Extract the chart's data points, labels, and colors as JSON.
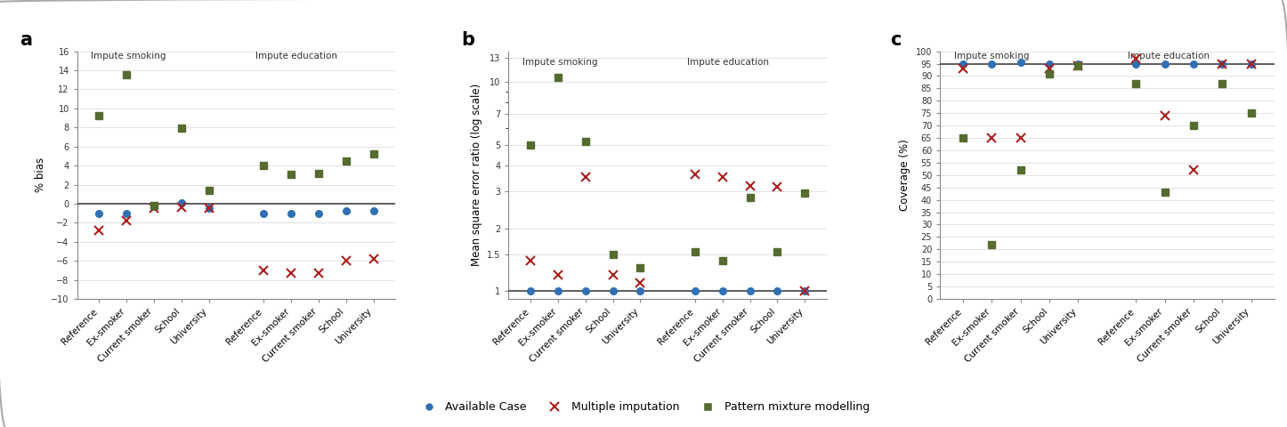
{
  "panel_labels": [
    "a",
    "b",
    "c"
  ],
  "categories": [
    "Reference",
    "Ex-smoker",
    "Current smoker",
    "School",
    "University"
  ],
  "section_labels": [
    "Impute smoking",
    "Impute education"
  ],
  "panel_a": {
    "ylabel": "% bias",
    "ylim": [
      -10,
      16
    ],
    "yticks": [
      -10,
      -8,
      -6,
      -4,
      -2,
      0,
      2,
      4,
      6,
      8,
      10,
      12,
      14,
      16
    ],
    "hline": 0,
    "smoke_AC": [
      -1.0,
      -1.0,
      -0.3,
      0.1,
      -0.5
    ],
    "smoke_MI": [
      -2.8,
      -1.8,
      -0.5,
      -0.4,
      -0.5
    ],
    "smoke_PMM": [
      9.2,
      13.5,
      -0.2,
      7.9,
      1.4
    ],
    "edu_AC": [
      -1.0,
      -1.0,
      -1.0,
      -0.8,
      -0.8
    ],
    "edu_MI": [
      -7.0,
      -7.3,
      -7.3,
      -6.0,
      -5.8
    ],
    "edu_PMM": [
      4.0,
      3.1,
      3.2,
      4.5,
      5.2
    ]
  },
  "panel_b": {
    "ylabel": "Mean square error ratio (log scale)",
    "yticks": [
      1,
      1.5,
      2,
      3,
      4,
      5,
      7,
      10,
      13
    ],
    "hline": 1,
    "smoke_AC": [
      1.0,
      1.0,
      1.0,
      1.0,
      1.0
    ],
    "smoke_MI": [
      1.4,
      1.2,
      3.5,
      1.2,
      1.1
    ],
    "smoke_PMM": [
      5.0,
      10.5,
      5.2,
      1.5,
      1.3
    ],
    "edu_AC": [
      1.0,
      1.0,
      1.0,
      1.0,
      1.0
    ],
    "edu_MI": [
      3.6,
      3.5,
      3.2,
      3.15,
      1.0
    ],
    "edu_PMM": [
      1.55,
      1.4,
      2.8,
      1.55,
      2.95
    ]
  },
  "panel_c": {
    "ylabel": "Coverage (%)",
    "ylim": [
      0,
      100
    ],
    "yticks": [
      0,
      5,
      10,
      15,
      20,
      25,
      30,
      35,
      40,
      45,
      50,
      55,
      60,
      65,
      70,
      75,
      80,
      85,
      90,
      95,
      100
    ],
    "hline": 95,
    "smoke_AC": [
      95.0,
      95.0,
      95.5,
      95.0,
      95.0
    ],
    "smoke_MI": [
      93.0,
      65.0,
      65.0,
      93.0,
      94.0
    ],
    "smoke_PMM": [
      65.0,
      22.0,
      52.0,
      91.0,
      94.0
    ],
    "edu_AC": [
      95.0,
      95.0,
      95.0,
      95.0,
      95.0
    ],
    "edu_MI": [
      97.0,
      74.0,
      52.0,
      95.0,
      95.0
    ],
    "edu_PMM": [
      87.0,
      43.0,
      70.0,
      87.0,
      75.0
    ]
  },
  "colors": {
    "AC": "#3070b3",
    "MI": "#aa2020",
    "PMM": "#556b2f"
  },
  "legend_labels": [
    "Available Case",
    "Multiple imputation",
    "Pattern mixture modelling"
  ],
  "background_color": "#ffffff",
  "frame_color": "#aaaaaa"
}
